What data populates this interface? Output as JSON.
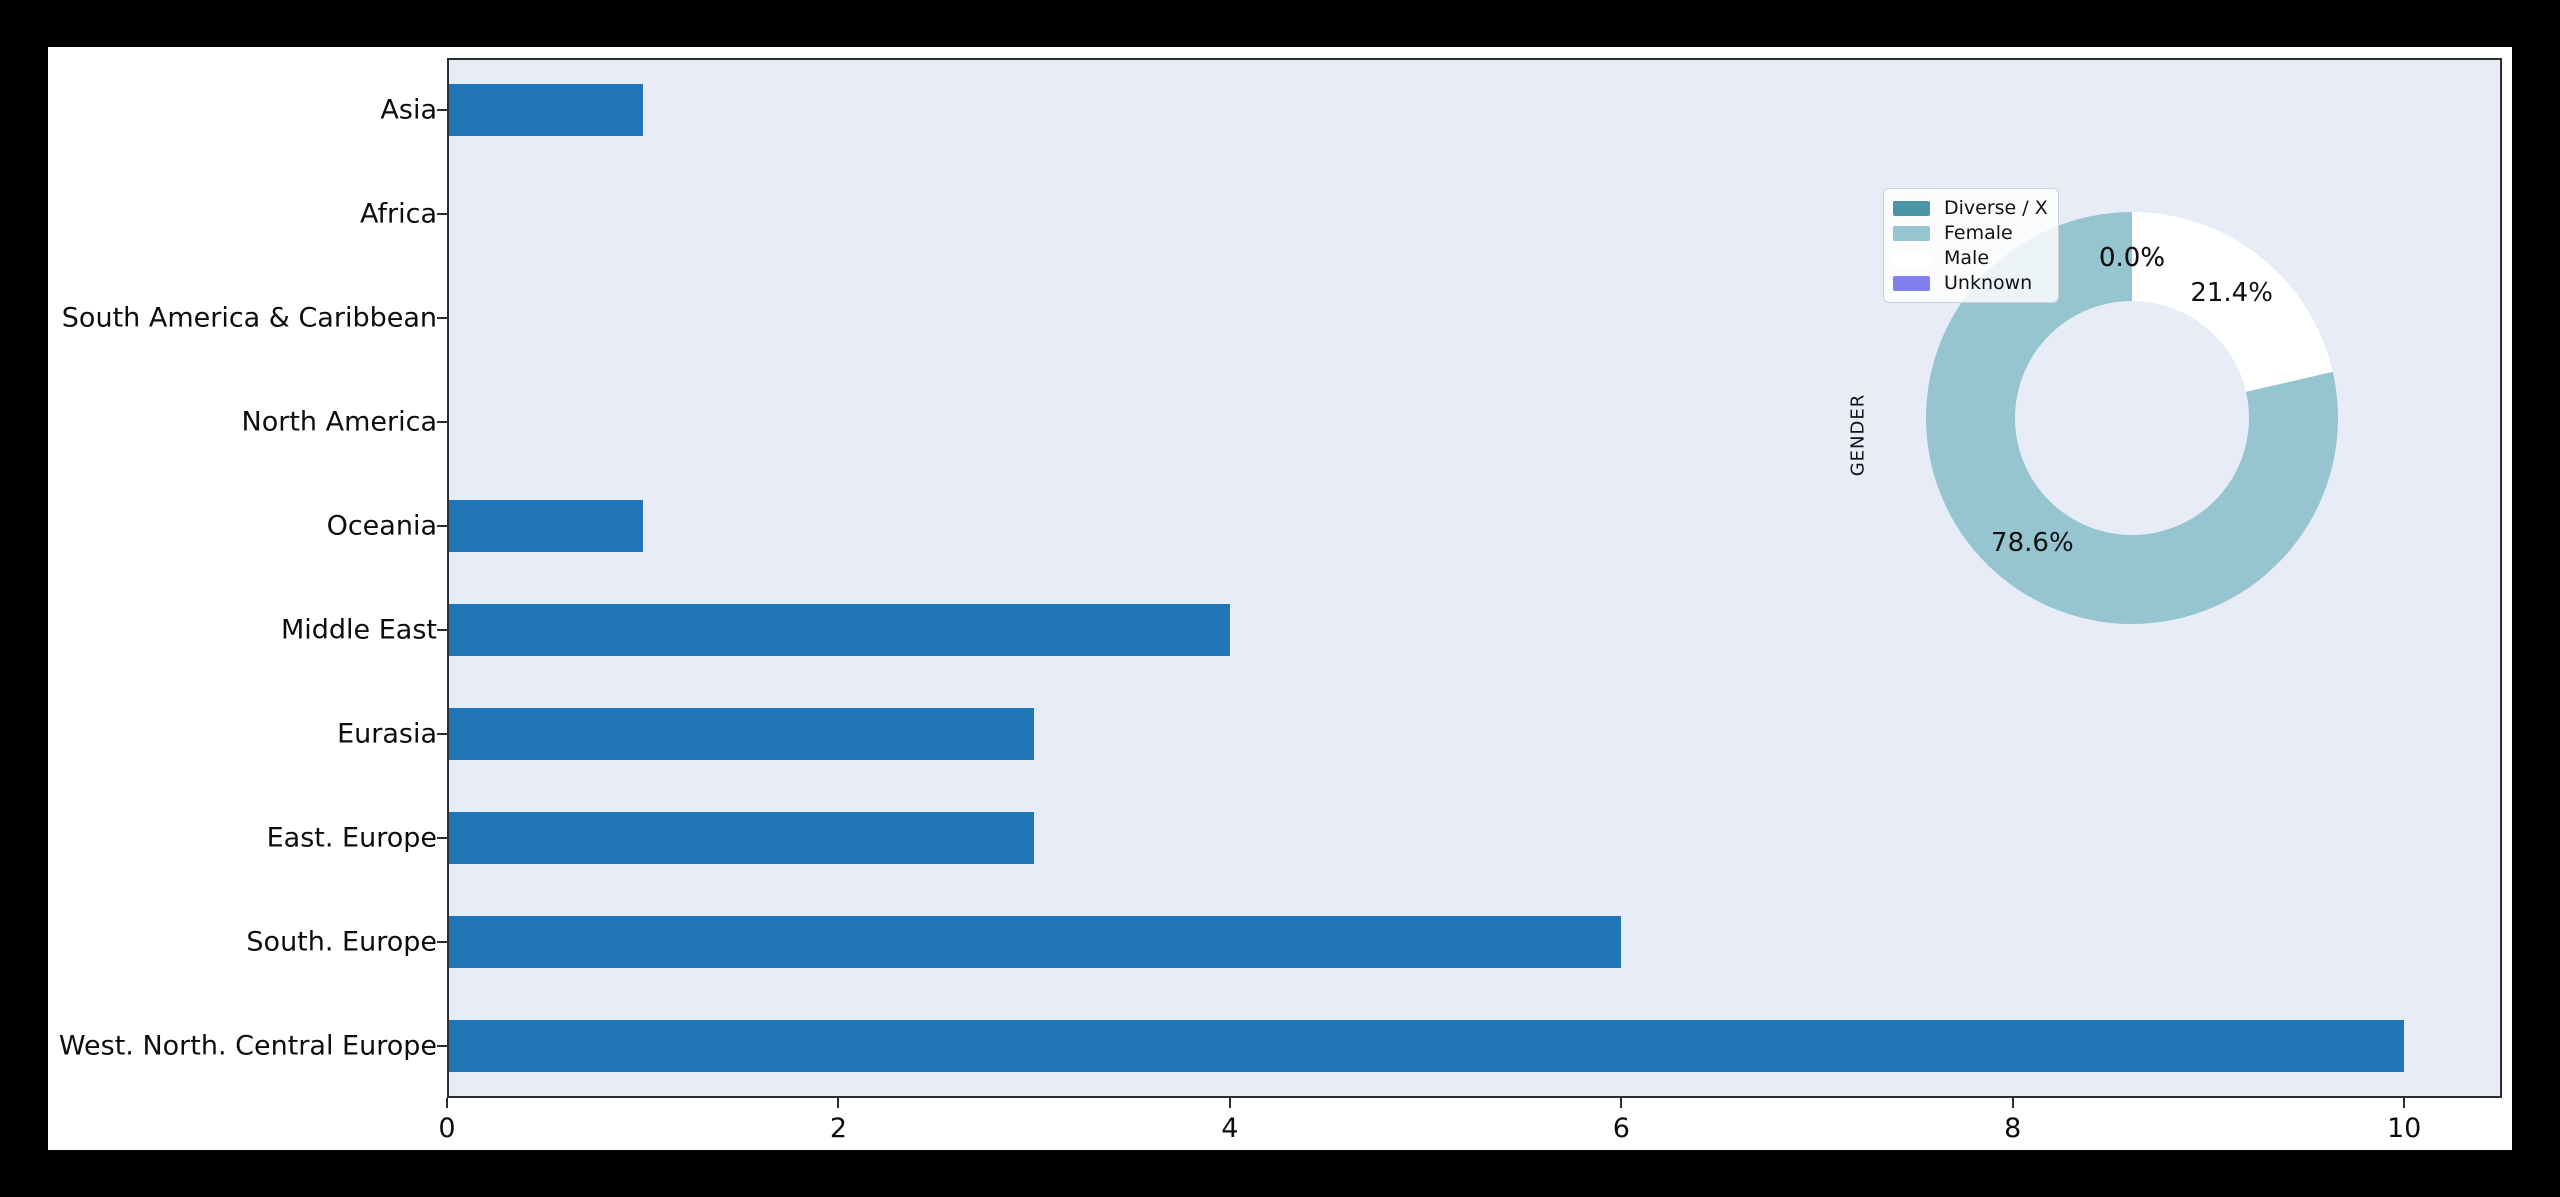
{
  "colors": {
    "background": "#000000",
    "figure_background": "#ffffff",
    "axes_background": "#e8ecf7",
    "bar": "#2176b5",
    "spine": "#2d2d2d",
    "text": "#0d0d0d"
  },
  "chart_data": [
    {
      "type": "bar",
      "orientation": "horizontal",
      "title": "",
      "xlabel": "",
      "ylabel": "",
      "categories": [
        "Asia",
        "Africa",
        "South America & Caribbean",
        "North America",
        "Oceania",
        "Middle East",
        "Eurasia",
        "East. Europe",
        "South. Europe",
        "West. North. Central Europe"
      ],
      "values": [
        1,
        0,
        0,
        0,
        1,
        4,
        3,
        3,
        6,
        10
      ],
      "xlim": [
        0,
        10.5
      ],
      "xticks": [
        0,
        2,
        4,
        6,
        8,
        10
      ],
      "grid": false,
      "bar_color": "#2176b5",
      "legend_position": "none"
    },
    {
      "type": "pie",
      "title": "",
      "ylabel": "GENDER",
      "donut": true,
      "start_angle": 90,
      "counterclockwise": true,
      "labels": [
        "Diverse / X",
        "Female",
        "Male",
        "Unknown"
      ],
      "values_pct": [
        0.0,
        78.6,
        21.4,
        0.0
      ],
      "pct_labels": [
        "0.0%",
        "78.6%",
        "21.4%",
        "0.0%"
      ],
      "colors": [
        "#4a96a8",
        "#96c4d0",
        "#ffffff",
        "#8180f0"
      ],
      "legend_position": "upper left"
    }
  ]
}
